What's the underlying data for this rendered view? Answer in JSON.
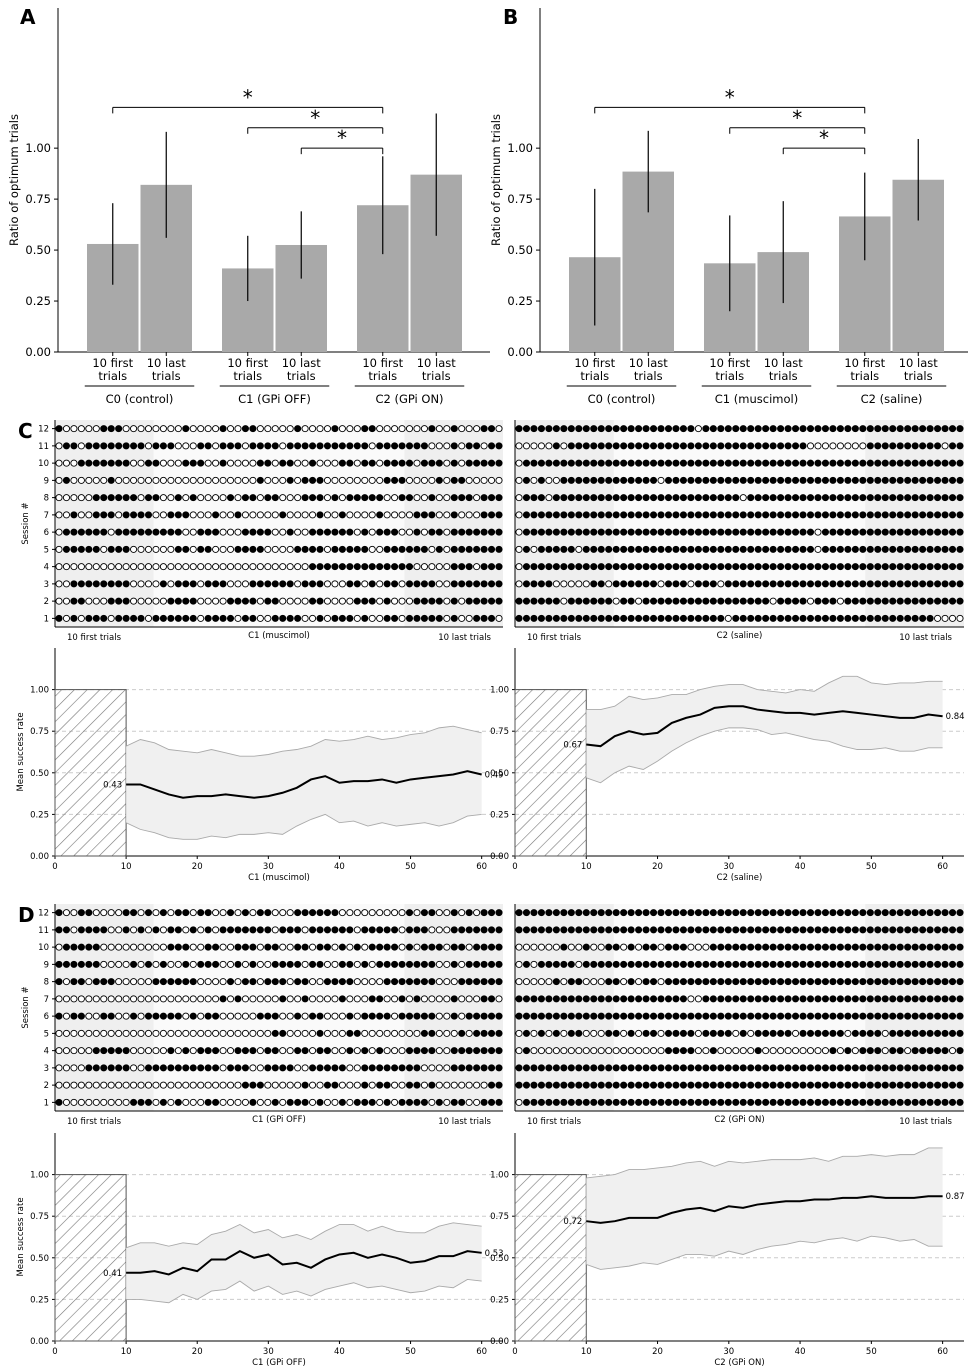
{
  "panel_labels": {
    "A": "A",
    "B": "B",
    "C": "C",
    "D": "D"
  },
  "common": {
    "ratio_ylabel": "Ratio of optimum trials",
    "session_ylabel": "Session #",
    "success_ylabel": "Mean success rate",
    "first_label": "10 first trials",
    "last_label": "10 last trials",
    "first_trials_tick": "10 first\ntrials",
    "last_trials_tick": "10 last\ntrials",
    "star": "*",
    "bar_color": "#a9a9a9"
  },
  "chart_data": [
    {
      "id": "A",
      "type": "bar",
      "categories": [
        "10 first trials",
        "10 last trials",
        "10 first trials",
        "10 last trials",
        "10 first trials",
        "10 last trials"
      ],
      "groups": [
        "C0 (control)",
        "C1 (GPi OFF)",
        "C2 (GPi ON)"
      ],
      "values": [
        0.53,
        0.82,
        0.41,
        0.525,
        0.72,
        0.87
      ],
      "errors": [
        0.2,
        0.26,
        0.16,
        0.165,
        0.24,
        0.3
      ],
      "yticks": [
        "0.00",
        "0.25",
        "0.50",
        "0.75",
        "1.00"
      ],
      "ylim": [
        0,
        1.3
      ],
      "significance": [
        {
          "from": 0,
          "to": 4
        },
        {
          "from": 2,
          "to": 4
        },
        {
          "from": 3,
          "to": 4
        }
      ]
    },
    {
      "id": "B",
      "type": "bar",
      "categories": [
        "10 first trials",
        "10 last trials",
        "10 first trials",
        "10 last trials",
        "10 first trials",
        "10 last trials"
      ],
      "groups": [
        "C0 (control)",
        "C1 (muscimol)",
        "C2 (saline)"
      ],
      "values": [
        0.465,
        0.885,
        0.435,
        0.49,
        0.665,
        0.845
      ],
      "errors": [
        0.335,
        0.2,
        0.235,
        0.25,
        0.215,
        0.2
      ],
      "yticks": [
        "0.00",
        "0.25",
        "0.50",
        "0.75",
        "1.00"
      ],
      "ylim": [
        0,
        1.3
      ],
      "significance": [
        {
          "from": 0,
          "to": 4
        },
        {
          "from": 2,
          "to": 4
        },
        {
          "from": 3,
          "to": 4
        }
      ]
    },
    {
      "id": "C-left",
      "type": "heatmap",
      "xlabel": "C1 (muscimol)",
      "sessions": [
        "101011101111011111101111011001111001011101001101111101001110",
        "001100011100000111100001111011000011000011101000111101011111",
        "001111111100001011101110001111110111000110101101111001111111",
        "000000000000000000000000000000000011111111111111000001110111",
        "011111011100000011011000111100001111011111001111110101111111",
        "011111101111111110011100011110010011111101011100101101111111",
        "001001110111100111000100100000100001001000010000111001000111",
        "000001111110110010100001011011000111010111110011001001110111",
        "010000010000000000000000000100010111000000001110000101100000",
        "000111111100110001110010000110110010001101101111011101011111",
        "011011111111011100011011101111011111111111011111110001011011",
        "100000111000000001000010011000001000010001100000001001000110"
      ],
      "yticks": [
        "1",
        "2",
        "3",
        "4",
        "5",
        "6",
        "7",
        "8",
        "9",
        "10",
        "11",
        "12"
      ]
    },
    {
      "id": "C-right",
      "type": "heatmap",
      "xlabel": "C2 (saline)",
      "sessions": [
        "111111111111111111111111111101111111111111111111111111110000",
        "111111011111101101111111111111111101111011101111111111111111",
        "011110000011011111101110111011111111111111111111111111111111",
        "011111111111111111111111111111111111111111111111111111111111",
        "010111110111111111111111111111111111111101111111111111111111",
        "011111111111111111111111111111111111111101111111111111111111",
        "011111111111111111111111111111111111111111111111111111111111",
        "011101111111111111111111111111011111111111111111111111111111",
        "010100111111111111101111111111111111111111111111111111111111",
        "011111111111111111111111111111111111111111111111111111111111",
        "000001011111111111111111111111111111111000000001111111111011",
        "111111111111111111111111011111111111111111111111111111111111"
      ],
      "yticks": [
        "1",
        "2",
        "3",
        "4",
        "5",
        "6",
        "7",
        "8",
        "9",
        "10",
        "11",
        "12"
      ]
    },
    {
      "id": "C-line-left",
      "type": "line",
      "xlabel": "C1 (muscimol)",
      "x": [
        10,
        12,
        14,
        16,
        18,
        20,
        22,
        24,
        26,
        28,
        30,
        32,
        34,
        36,
        38,
        40,
        42,
        44,
        46,
        48,
        50,
        52,
        54,
        56,
        58,
        60
      ],
      "mean": [
        0.43,
        0.43,
        0.4,
        0.37,
        0.35,
        0.36,
        0.36,
        0.37,
        0.36,
        0.35,
        0.36,
        0.38,
        0.41,
        0.46,
        0.48,
        0.44,
        0.45,
        0.45,
        0.46,
        0.44,
        0.46,
        0.47,
        0.48,
        0.49,
        0.51,
        0.49
      ],
      "upper": [
        0.66,
        0.7,
        0.68,
        0.64,
        0.63,
        0.62,
        0.64,
        0.62,
        0.6,
        0.6,
        0.61,
        0.63,
        0.64,
        0.66,
        0.7,
        0.69,
        0.7,
        0.72,
        0.7,
        0.71,
        0.73,
        0.74,
        0.77,
        0.78,
        0.76,
        0.74
      ],
      "lower": [
        0.2,
        0.16,
        0.14,
        0.11,
        0.1,
        0.1,
        0.12,
        0.11,
        0.13,
        0.13,
        0.14,
        0.13,
        0.18,
        0.22,
        0.25,
        0.2,
        0.21,
        0.18,
        0.2,
        0.18,
        0.19,
        0.2,
        0.18,
        0.2,
        0.24,
        0.25
      ],
      "start_label": "0.43",
      "end_label": "0.49",
      "xticks": [
        "0",
        "10",
        "20",
        "30",
        "40",
        "50",
        "60"
      ],
      "yticks": [
        "0.00",
        "0.25",
        "0.50",
        "0.75",
        "1.00"
      ]
    },
    {
      "id": "C-line-right",
      "type": "line",
      "xlabel": "C2 (saline)",
      "x": [
        10,
        12,
        14,
        16,
        18,
        20,
        22,
        24,
        26,
        28,
        30,
        32,
        34,
        36,
        38,
        40,
        42,
        44,
        46,
        48,
        50,
        52,
        54,
        56,
        58,
        60
      ],
      "mean": [
        0.67,
        0.66,
        0.72,
        0.75,
        0.73,
        0.74,
        0.8,
        0.83,
        0.85,
        0.89,
        0.9,
        0.9,
        0.88,
        0.87,
        0.86,
        0.86,
        0.85,
        0.86,
        0.87,
        0.86,
        0.85,
        0.84,
        0.83,
        0.83,
        0.85,
        0.84
      ],
      "upper": [
        0.88,
        0.88,
        0.9,
        0.96,
        0.94,
        0.95,
        0.97,
        0.97,
        1.0,
        1.02,
        1.03,
        1.03,
        1.0,
        0.99,
        0.98,
        1.0,
        0.99,
        1.04,
        1.08,
        1.08,
        1.04,
        1.03,
        1.04,
        1.04,
        1.05,
        1.05
      ],
      "lower": [
        0.47,
        0.44,
        0.5,
        0.54,
        0.52,
        0.57,
        0.63,
        0.68,
        0.72,
        0.75,
        0.77,
        0.77,
        0.76,
        0.73,
        0.74,
        0.72,
        0.7,
        0.69,
        0.66,
        0.64,
        0.64,
        0.65,
        0.63,
        0.63,
        0.65,
        0.65
      ],
      "start_label": "0.67",
      "end_label": "0.84",
      "xticks": [
        "0",
        "10",
        "20",
        "30",
        "40",
        "50",
        "60"
      ],
      "yticks": [
        "0.00",
        "0.25",
        "0.50",
        "0.75",
        "1.00"
      ]
    },
    {
      "id": "D-left",
      "type": "heatmap",
      "xlabel": "C1 (GPi OFF)",
      "sessions": [
        "100000000011101010001100001001011101001011101011110101100111",
        "000000000000000000000000011100000100110001011001101000000011",
        "000011111100111111111101110011110011111001111111100001111111",
        "000001111100000101011100111011001101100101010001111001111111",
        "000000000000000000000000000001100001000110000000011000101111",
        "101100110010111110101100000111001011000101111011111001011111",
        "000000000000000000000010100000100100001000110010100001000110",
        "101101110000011111100001011011101100111100001111111000111111",
        "111111000010101001011100101001111011001101011111111001011111",
        "011111000000000111001100111011001101101010111101011101101111",
        "110111100101010110101011111110111011111101111101110001111111",
        "100110000110101011011001010110001111110000000001011001010111"
      ],
      "yticks": [
        "1",
        "2",
        "3",
        "4",
        "5",
        "6",
        "7",
        "8",
        "9",
        "10",
        "11",
        "12"
      ]
    },
    {
      "id": "D-right",
      "type": "heatmap",
      "xlabel": "C2 (GPi ON)",
      "sessions": [
        "011111111111111111111111111111111111111111111111111111111111",
        "111111111111111111111111111111111111111111111111111111111111",
        "111111111111111111111111111111111111111111111111111111111111",
        "010000000000000000001111001000001000000000101011101101111101",
        "010101011000110101101111011110101111101111110111101111111111",
        "111111111111111111111111111111111111111111111111111111111111",
        "111111111111111111111110011111111111111111111111111111111111",
        "000001011000110101101111111111111111111111111111111111111111",
        "010111110111111111111111111111111111111111111111111111111111",
        "000000100100110101101110001111111111111111111111111111111111",
        "111111111111111111111111111111111111111111111111111111111111",
        "111111111111111111111111111111111111111111111111111111111111"
      ],
      "yticks": [
        "1",
        "2",
        "3",
        "4",
        "5",
        "6",
        "7",
        "8",
        "9",
        "10",
        "11",
        "12"
      ]
    },
    {
      "id": "D-line-left",
      "type": "line",
      "xlabel": "C1 (GPi OFF)",
      "x": [
        10,
        12,
        14,
        16,
        18,
        20,
        22,
        24,
        26,
        28,
        30,
        32,
        34,
        36,
        38,
        40,
        42,
        44,
        46,
        48,
        50,
        52,
        54,
        56,
        58,
        60
      ],
      "mean": [
        0.41,
        0.41,
        0.42,
        0.4,
        0.44,
        0.42,
        0.49,
        0.49,
        0.54,
        0.5,
        0.52,
        0.46,
        0.47,
        0.44,
        0.49,
        0.52,
        0.53,
        0.5,
        0.52,
        0.5,
        0.47,
        0.48,
        0.51,
        0.51,
        0.54,
        0.53
      ],
      "upper": [
        0.56,
        0.59,
        0.59,
        0.57,
        0.59,
        0.58,
        0.64,
        0.66,
        0.7,
        0.65,
        0.67,
        0.62,
        0.64,
        0.61,
        0.66,
        0.7,
        0.7,
        0.66,
        0.69,
        0.66,
        0.65,
        0.65,
        0.69,
        0.71,
        0.7,
        0.69
      ],
      "lower": [
        0.25,
        0.25,
        0.24,
        0.23,
        0.28,
        0.25,
        0.3,
        0.31,
        0.36,
        0.3,
        0.33,
        0.28,
        0.3,
        0.27,
        0.31,
        0.33,
        0.35,
        0.32,
        0.33,
        0.31,
        0.29,
        0.3,
        0.33,
        0.32,
        0.37,
        0.36
      ],
      "start_label": "0.41",
      "end_label": "0.53",
      "xticks": [
        "0",
        "10",
        "20",
        "30",
        "40",
        "50",
        "60"
      ],
      "yticks": [
        "0.00",
        "0.25",
        "0.50",
        "0.75",
        "1.00"
      ]
    },
    {
      "id": "D-line-right",
      "type": "line",
      "xlabel": "C2 (GPi ON)",
      "x": [
        10,
        12,
        14,
        16,
        18,
        20,
        22,
        24,
        26,
        28,
        30,
        32,
        34,
        36,
        38,
        40,
        42,
        44,
        46,
        48,
        50,
        52,
        54,
        56,
        58,
        60
      ],
      "mean": [
        0.72,
        0.71,
        0.72,
        0.74,
        0.74,
        0.74,
        0.77,
        0.79,
        0.8,
        0.78,
        0.81,
        0.8,
        0.82,
        0.83,
        0.84,
        0.84,
        0.85,
        0.85,
        0.86,
        0.86,
        0.87,
        0.86,
        0.86,
        0.86,
        0.87,
        0.87
      ],
      "upper": [
        0.98,
        0.99,
        1.0,
        1.03,
        1.03,
        1.04,
        1.05,
        1.07,
        1.08,
        1.05,
        1.08,
        1.07,
        1.08,
        1.09,
        1.09,
        1.09,
        1.1,
        1.08,
        1.11,
        1.11,
        1.12,
        1.11,
        1.12,
        1.12,
        1.16,
        1.16
      ],
      "lower": [
        0.46,
        0.43,
        0.44,
        0.45,
        0.47,
        0.46,
        0.49,
        0.52,
        0.52,
        0.51,
        0.54,
        0.52,
        0.55,
        0.57,
        0.58,
        0.6,
        0.59,
        0.61,
        0.62,
        0.6,
        0.63,
        0.62,
        0.6,
        0.61,
        0.57,
        0.57
      ],
      "start_label": "0.72",
      "end_label": "0.87",
      "xticks": [
        "0",
        "10",
        "20",
        "30",
        "40",
        "50",
        "60"
      ],
      "yticks": [
        "0.00",
        "0.25",
        "0.50",
        "0.75",
        "1.00"
      ]
    }
  ]
}
